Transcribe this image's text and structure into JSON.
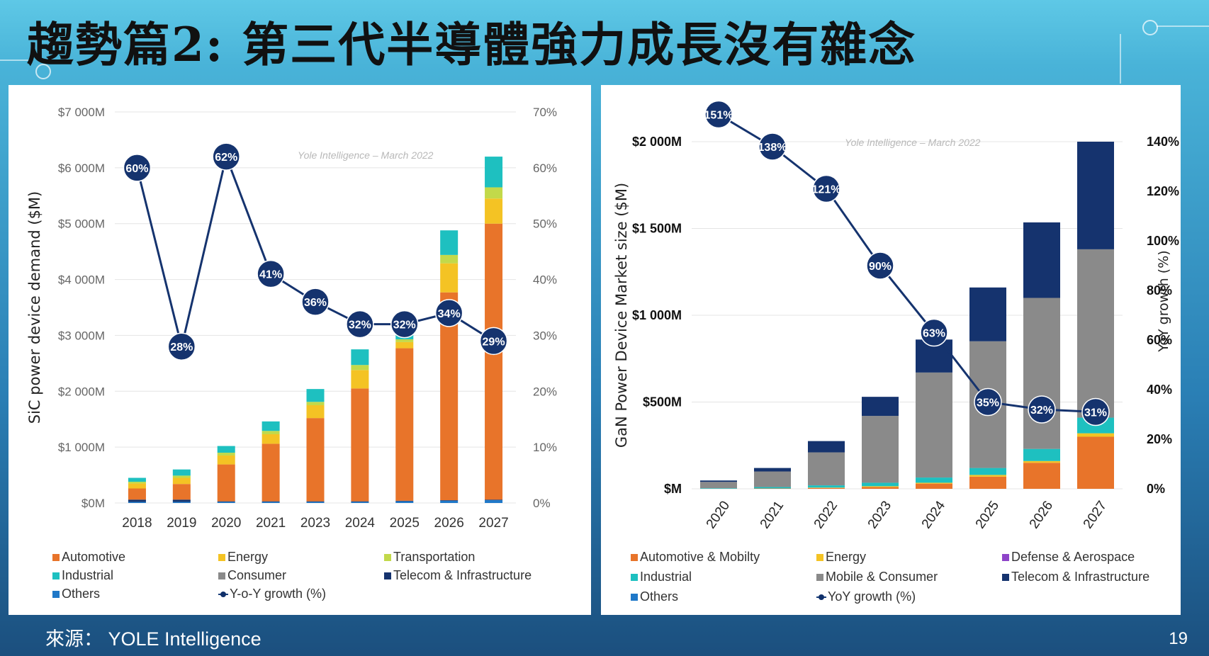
{
  "slide": {
    "title": "趨勢篇2: 第三代半導體強力成長沒有雜念",
    "source": "來源： YOLE Intelligence",
    "page_number": "19"
  },
  "colors": {
    "Automotive": "#e8742a",
    "Energy": "#f4c324",
    "Transportation": "#c2d94a",
    "Industrial": "#1ec0c0",
    "Consumer": "#8a8a8a",
    "Telecom": "#15336e",
    "Others": "#1f78c8",
    "Defense": "#8e44c9",
    "growth_line": "#15336e"
  },
  "chart_data": [
    {
      "type": "bar",
      "stacked": true,
      "watermark": "Yole Intelligence – March 2022",
      "ylabel": "SiC power device demand ($M)",
      "ylim": [
        0,
        7000
      ],
      "y_ticks": [
        "$0M",
        "$1 000M",
        "$2 000M",
        "$3 000M",
        "$4 000M",
        "$5 000M",
        "$6 000M",
        "$7 000M"
      ],
      "y2lim": [
        0,
        70
      ],
      "y2_ticks": [
        "0%",
        "10%",
        "20%",
        "30%",
        "40%",
        "50%",
        "60%",
        "70%"
      ],
      "categories": [
        "2018",
        "2019",
        "2020",
        "2021",
        "2023",
        "2024",
        "2025",
        "2026",
        "2027"
      ],
      "series": [
        {
          "name": "Others",
          "color_key": "Others",
          "values": [
            20,
            20,
            20,
            20,
            20,
            20,
            30,
            40,
            50
          ]
        },
        {
          "name": "Telecom & Infrastructure",
          "color_key": "Telecom",
          "values": [
            40,
            40,
            10,
            10,
            10,
            10,
            10,
            10,
            10
          ]
        },
        {
          "name": "Automotive",
          "color_key": "Automotive",
          "values": [
            200,
            280,
            660,
            1030,
            1490,
            2020,
            2730,
            3720,
            4940
          ]
        },
        {
          "name": "Energy",
          "color_key": "Energy",
          "values": [
            90,
            110,
            160,
            170,
            230,
            330,
            110,
            520,
            450
          ]
        },
        {
          "name": "Transportation",
          "color_key": "Transportation",
          "values": [
            30,
            40,
            50,
            60,
            60,
            90,
            50,
            150,
            200
          ]
        },
        {
          "name": "Industrial",
          "color_key": "Industrial",
          "values": [
            70,
            110,
            120,
            170,
            230,
            280,
            90,
            440,
            550
          ]
        },
        {
          "name": "Consumer",
          "color_key": "Consumer",
          "values": [
            0,
            0,
            0,
            0,
            0,
            0,
            0,
            0,
            0
          ]
        }
      ],
      "growth": {
        "name": "Y-o-Y growth (%)",
        "values": [
          60,
          28,
          62,
          41,
          36,
          32,
          32,
          34,
          29
        ],
        "labels": [
          "60%",
          "28%",
          "62%",
          "41%",
          "36%",
          "32%",
          "32%",
          "34%",
          "29%"
        ]
      },
      "legend": [
        "Automotive",
        "Energy",
        "Transportation",
        "Industrial",
        "Consumer",
        "Telecom & Infrastructure",
        "Others",
        "Y-o-Y growth (%)"
      ],
      "legend_placement": "bottom"
    },
    {
      "type": "bar",
      "stacked": true,
      "watermark": "Yole Intelligence – March 2022",
      "ylabel": "GaN Power Device Market size ($M)",
      "y2label": "YoY growth (%)",
      "ylim": [
        0,
        2000
      ],
      "y_ticks": [
        "$M",
        "$500M",
        "$1 000M",
        "$1 500M",
        "$2 000M"
      ],
      "y2lim": [
        0,
        140
      ],
      "y2_ticks": [
        "0%",
        "20%",
        "40%",
        "60%",
        "80%",
        "100%",
        "120%",
        "140%"
      ],
      "categories": [
        "2020",
        "2021",
        "2022",
        "2023",
        "2024",
        "2025",
        "2026",
        "2027"
      ],
      "series": [
        {
          "name": "Others",
          "color_key": "Others",
          "values": [
            0,
            0,
            0,
            0,
            0,
            0,
            0,
            0
          ]
        },
        {
          "name": "Automotive & Mobility",
          "color_key": "Automotive",
          "values": [
            0,
            2,
            5,
            10,
            30,
            70,
            150,
            300
          ]
        },
        {
          "name": "Energy",
          "color_key": "Energy",
          "values": [
            0,
            0,
            2,
            5,
            5,
            10,
            10,
            20
          ]
        },
        {
          "name": "Defense & Aerospace",
          "color_key": "Defense",
          "values": [
            0,
            0,
            0,
            0,
            0,
            0,
            0,
            0
          ]
        },
        {
          "name": "Industrial",
          "color_key": "Industrial",
          "values": [
            3,
            8,
            13,
            20,
            30,
            40,
            70,
            90
          ]
        },
        {
          "name": "Mobile & Consumer",
          "color_key": "Consumer",
          "values": [
            37,
            90,
            190,
            385,
            605,
            730,
            870,
            970
          ]
        },
        {
          "name": "Telecom & Infrastructure",
          "color_key": "Telecom",
          "values": [
            8,
            20,
            65,
            110,
            190,
            310,
            435,
            620
          ]
        }
      ],
      "growth": {
        "name": "YoY growth (%)",
        "values": [
          151,
          138,
          121,
          90,
          63,
          35,
          32,
          31
        ],
        "labels": [
          "151%",
          "138%",
          "121%",
          "90%",
          "63%",
          "35%",
          "32%",
          "31%"
        ]
      },
      "legend": [
        "Automotive & Mobilty",
        "Energy",
        "Defense & Aerospace",
        "Industrial",
        "Mobile & Consumer",
        "Telecom & Infrastructure",
        "Others",
        "YoY growth (%)"
      ],
      "legend_placement": "bottom"
    }
  ]
}
